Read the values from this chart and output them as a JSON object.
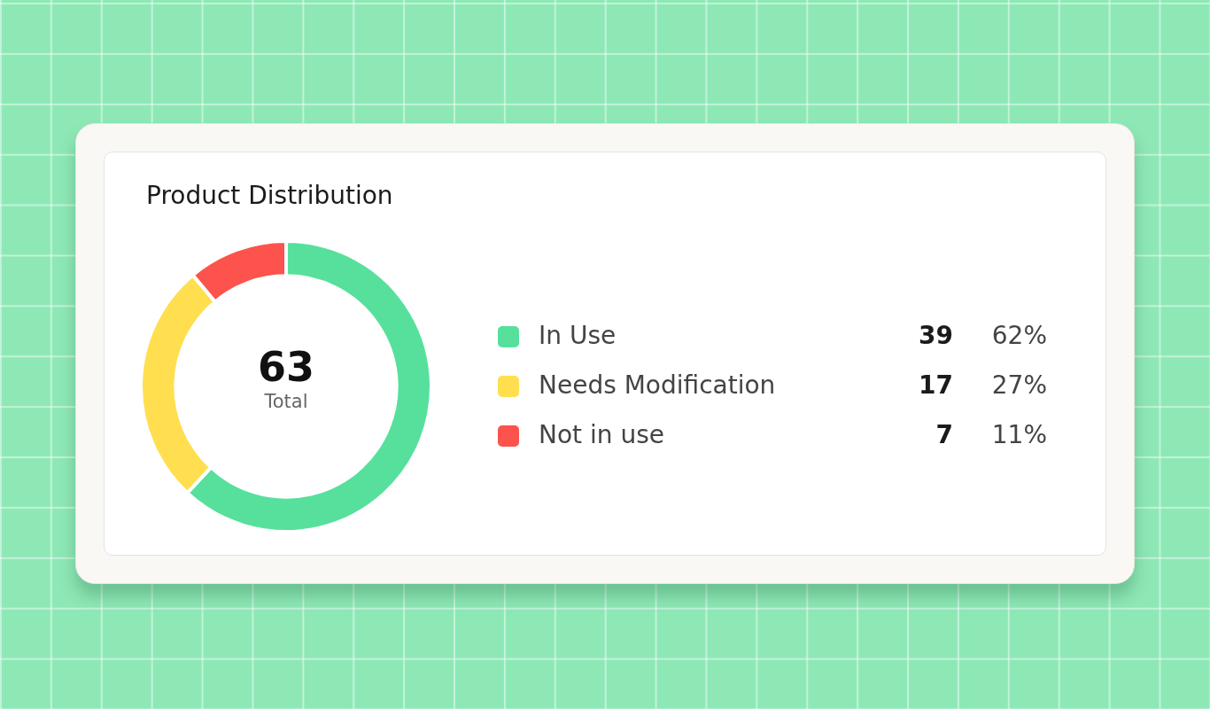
{
  "chart_data": {
    "type": "donut",
    "title": "Product Distribution",
    "categories": [
      "In Use",
      "Needs Modification",
      "Not in use"
    ],
    "values": [
      39,
      17,
      7
    ],
    "colors": [
      "#56e09c",
      "#ffdf50",
      "#fc534c"
    ],
    "data_labels": true,
    "annotations": [
      "63",
      "Total",
      "62%",
      "27%",
      "11%"
    ],
    "legend": "right"
  }
}
